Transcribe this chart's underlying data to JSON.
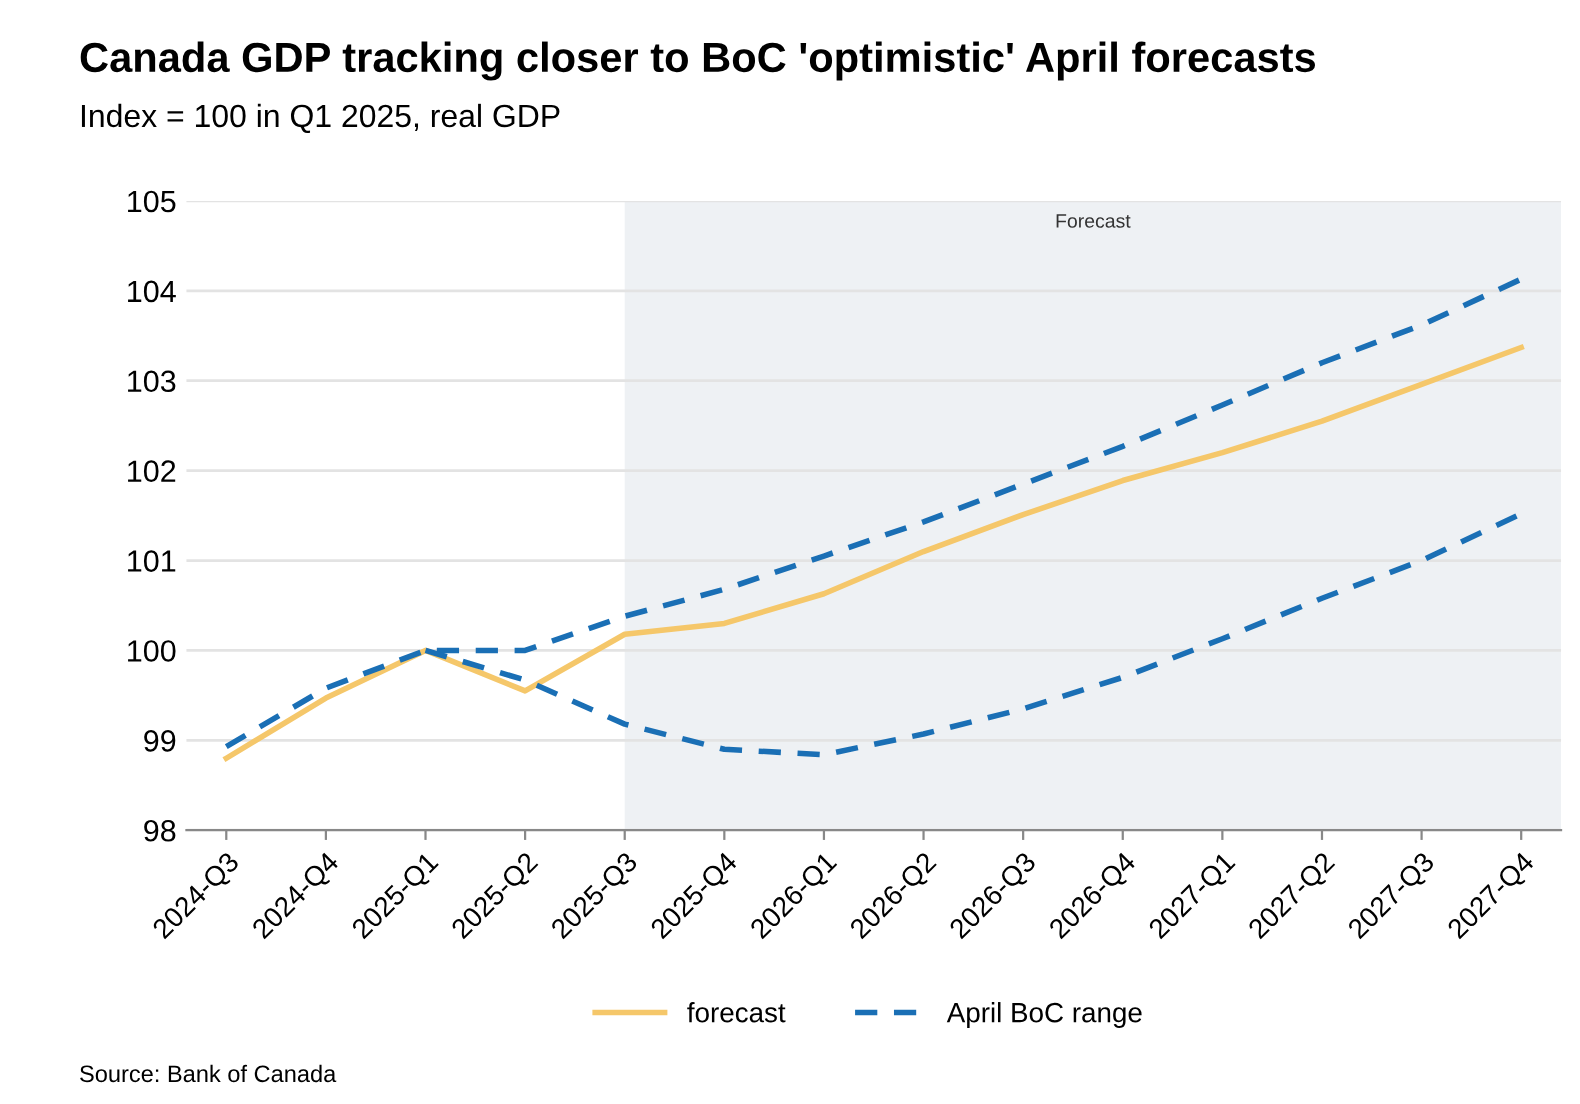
{
  "chart_data": {
    "type": "line",
    "title": "Canada GDP tracking closer to BoC 'optimistic' April forecasts",
    "subtitle": "Index = 100 in Q1 2025, real GDP",
    "categories": [
      "2024-Q3",
      "2024-Q4",
      "2025-Q1",
      "2025-Q2",
      "2025-Q3",
      "2025-Q4",
      "2026-Q1",
      "2026-Q2",
      "2026-Q3",
      "2026-Q4",
      "2027-Q1",
      "2027-Q2",
      "2027-Q3",
      "2027-Q4"
    ],
    "series": [
      {
        "name": "forecast",
        "color": "#f5c76a",
        "line_style": "solid",
        "values": [
          98.8,
          99.47,
          100.0,
          99.55,
          100.18,
          100.3,
          100.63,
          101.1,
          101.51,
          101.89,
          102.2,
          102.55,
          102.96,
          103.37
        ]
      },
      {
        "name": "April BoC range",
        "color": "#1a6fb5",
        "line_style": "dashed",
        "values": [
          98.93,
          99.58,
          100.0,
          100.0,
          100.38,
          100.68,
          101.05,
          101.43,
          101.85,
          102.27,
          102.73,
          103.2,
          103.62,
          104.13
        ]
      },
      {
        "color": "#1a6fb5",
        "line_style": "dashed",
        "values": [
          null,
          null,
          100.0,
          99.67,
          99.18,
          98.9,
          98.84,
          99.07,
          99.35,
          99.7,
          100.13,
          100.58,
          101.0,
          101.52
        ]
      }
    ],
    "ylim": [
      98,
      105
    ],
    "yticks": [
      98,
      99,
      100,
      101,
      102,
      103,
      104,
      105
    ],
    "grid": "y",
    "legend": "bottom",
    "marker": "none",
    "bands": [
      {
        "axis": "x",
        "from": "2025-Q3",
        "to": "2027-Q4",
        "label": "Forecast",
        "color": "#eef1f4"
      }
    ],
    "annotations": [
      "Source: Bank of Canada"
    ]
  }
}
